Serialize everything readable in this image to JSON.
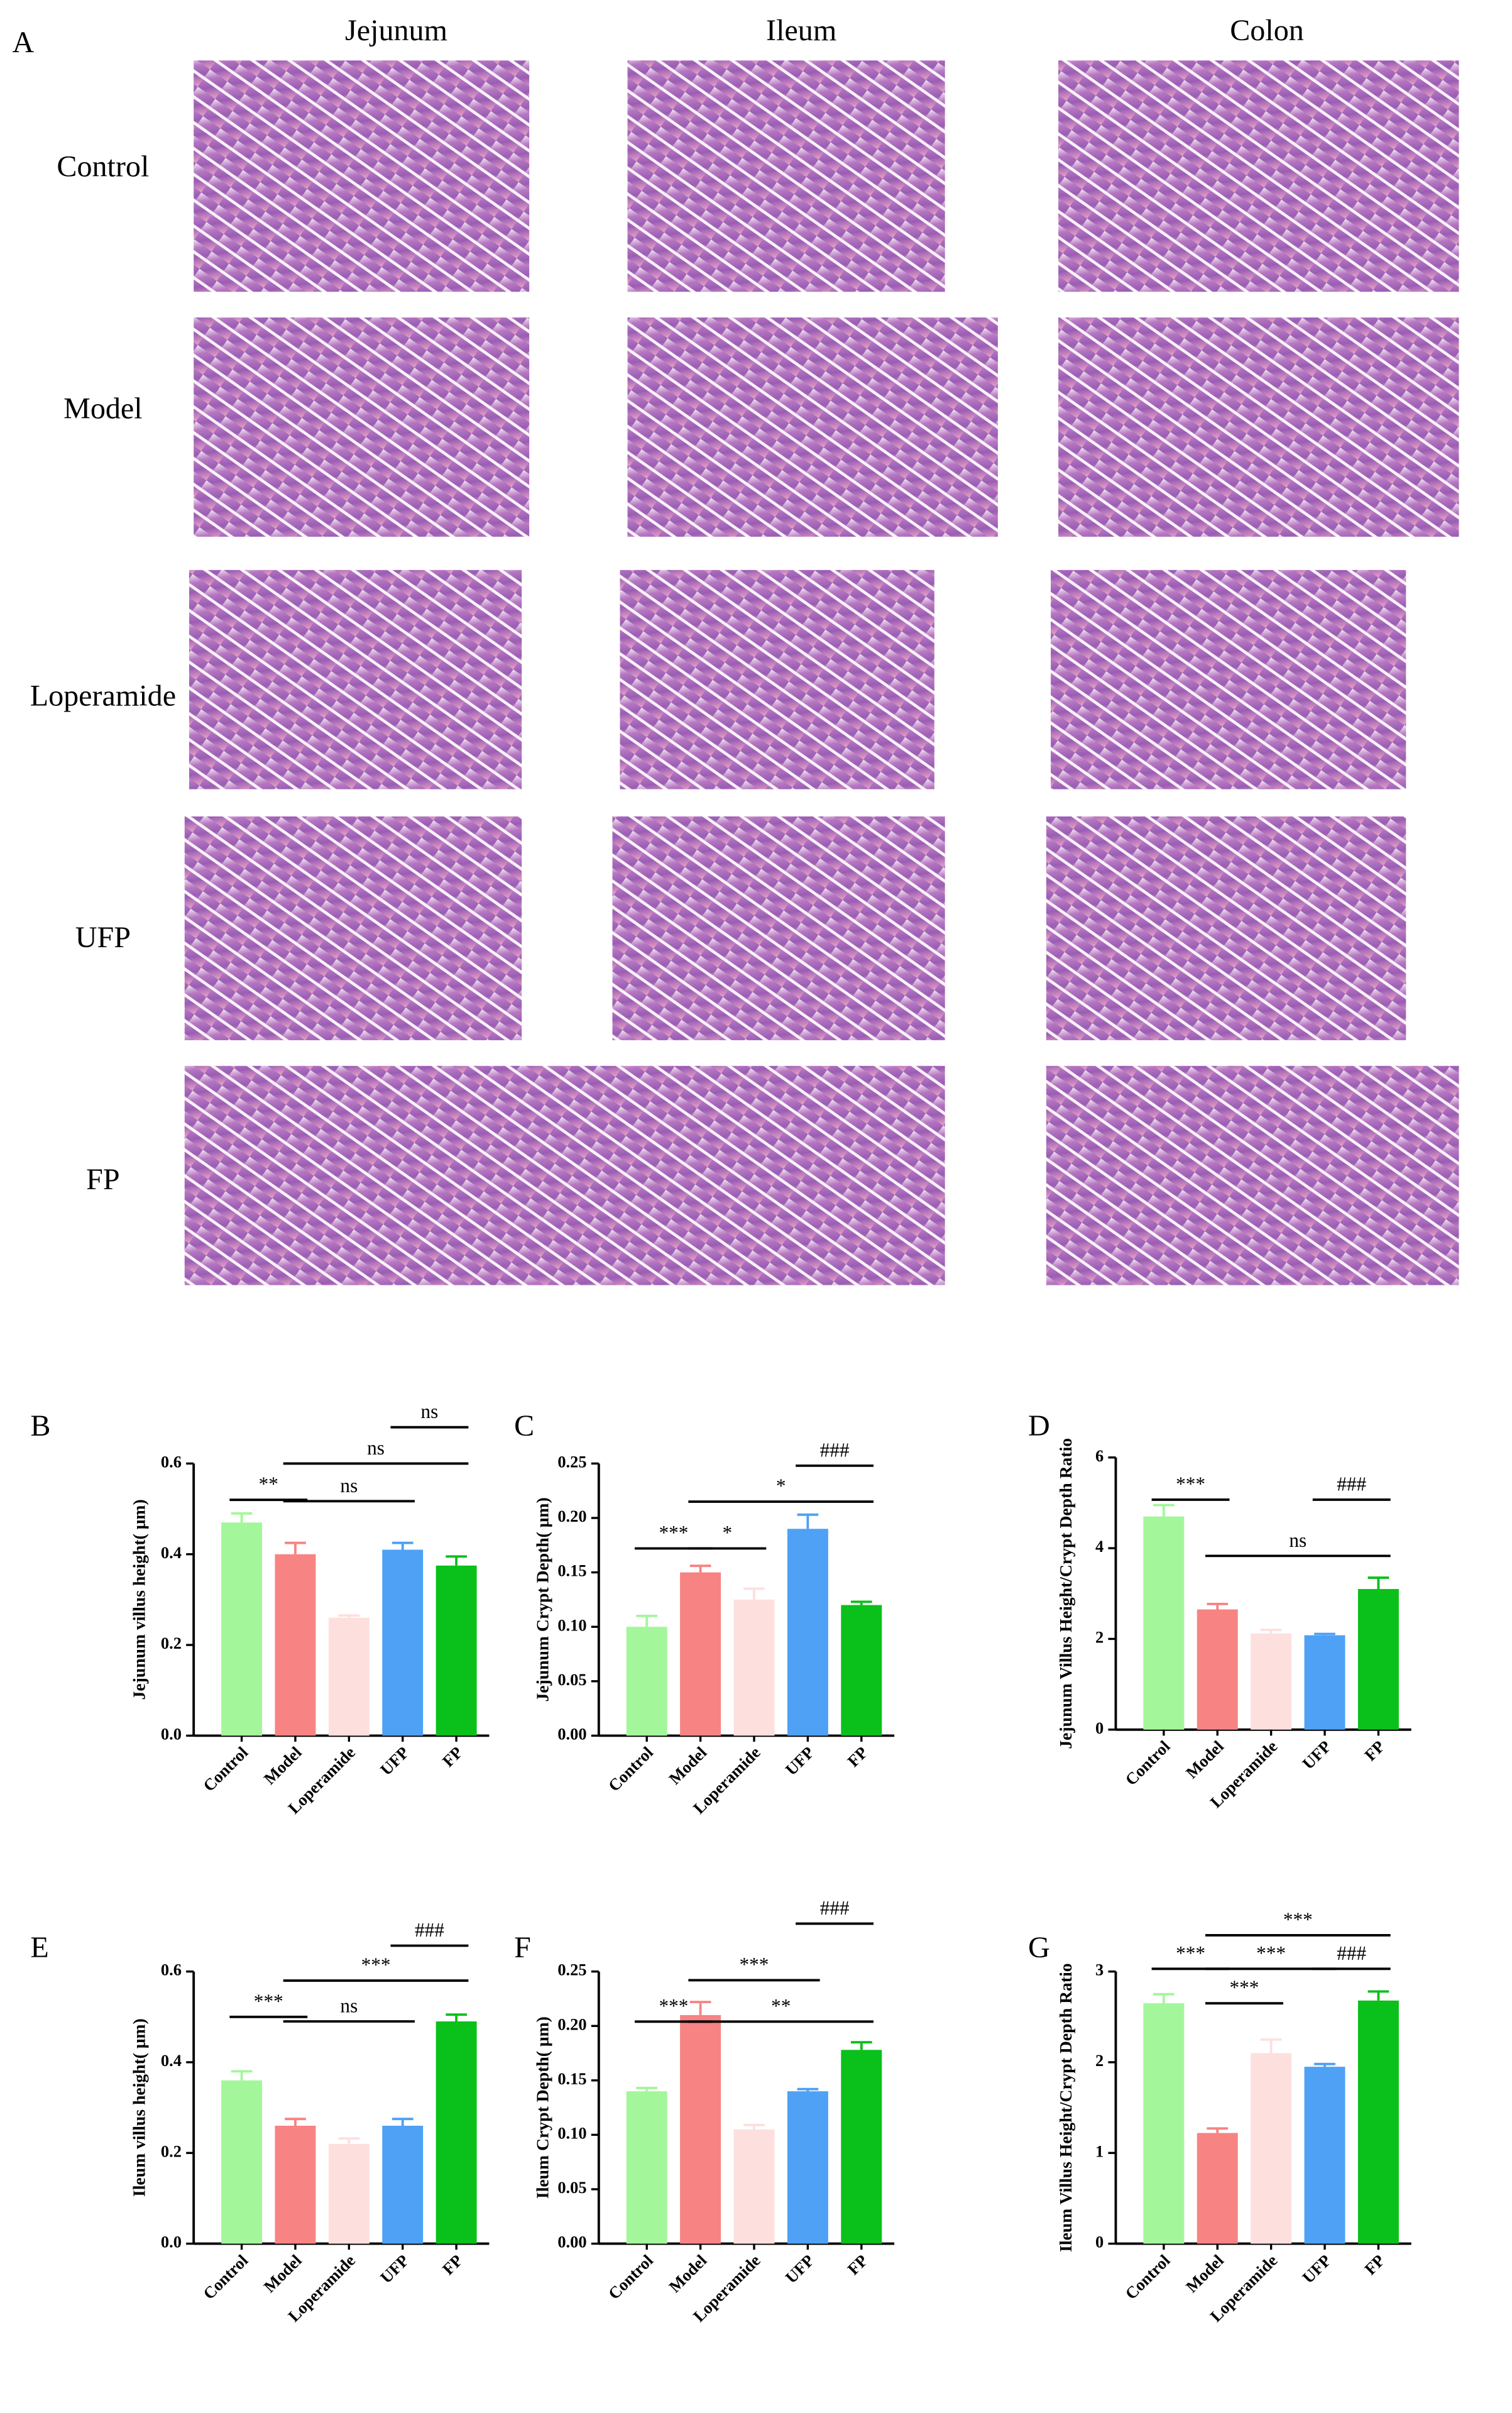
{
  "figure_a": {
    "label": "A",
    "columns": [
      "Jejunum",
      "Ileum",
      "Colon"
    ],
    "rows": [
      "Control",
      "Model",
      "Loperamide",
      "UFP",
      "FP"
    ]
  },
  "chart_data": [
    {
      "type": "bar",
      "panel": "B",
      "ylabel": "Jejunum villus height( μm)",
      "categories": [
        "Control",
        "Model",
        "Loperamide",
        "UFP",
        "FP"
      ],
      "values": [
        0.47,
        0.4,
        0.26,
        0.41,
        0.375
      ],
      "errors": [
        0.02,
        0.025,
        0.005,
        0.015,
        0.02
      ],
      "colors": [
        "#a3f79a",
        "#f78383",
        "#fde0de",
        "#4ea1f5",
        "#0ac01a"
      ],
      "ylim": [
        0,
        0.6
      ],
      "yticks": [
        {
          "value": 0,
          "label": "0.0"
        },
        0.2,
        0.4,
        0.6
      ],
      "annotations": [
        {
          "text": "**",
          "from": "Control",
          "to": "Model",
          "y": 0.52
        },
        {
          "text": "ns",
          "from": "Model",
          "to": "UFP",
          "y": 0.517
        },
        {
          "text": "ns",
          "from": "Model",
          "to": "FP",
          "y": 0.6
        },
        {
          "text": "ns",
          "from": "UFP",
          "to": "FP",
          "y": 0.68
        }
      ]
    },
    {
      "type": "bar",
      "panel": "C",
      "ylabel": "Jejunum Crypt Depth( μm)",
      "categories": [
        "Control",
        "Model",
        "Loperamide",
        "UFP",
        "FP"
      ],
      "values": [
        0.1,
        0.15,
        0.125,
        0.19,
        0.12
      ],
      "errors": [
        0.01,
        0.006,
        0.01,
        0.013,
        0.003
      ],
      "colors": [
        "#a3f79a",
        "#f78383",
        "#fde0de",
        "#4ea1f5",
        "#0ac01a"
      ],
      "ylim": [
        0,
        0.25
      ],
      "yticks": [
        {
          "value": 0,
          "label": "0.00"
        },
        0.05,
        {
          "value": 0.1,
          "label": "0.10"
        },
        0.15,
        {
          "value": 0.2,
          "label": "0.20"
        },
        0.25
      ],
      "annotations": [
        {
          "text": "***",
          "from": "Control",
          "to": "Model",
          "y": 0.172
        },
        {
          "text": "*",
          "from": "Model",
          "to": "Loperamide",
          "y": 0.172
        },
        {
          "text": "*",
          "from": "Model",
          "to": "FP",
          "y": 0.215
        },
        {
          "text": "###",
          "from": "UFP",
          "to": "FP",
          "y": 0.248
        }
      ]
    },
    {
      "type": "bar",
      "panel": "D",
      "ylabel": "Jejunum Villus Height/Crypt Depth Ratio",
      "categories": [
        "Control",
        "Model",
        "Loperamide",
        "UFP",
        "FP"
      ],
      "values": [
        4.7,
        2.65,
        2.12,
        2.08,
        3.1
      ],
      "errors": [
        0.25,
        0.12,
        0.08,
        0.03,
        0.25
      ],
      "colors": [
        "#a3f79a",
        "#f78383",
        "#fde0de",
        "#4ea1f5",
        "#0ac01a"
      ],
      "ylim": [
        0,
        6
      ],
      "yticks": [
        0,
        2,
        4,
        6
      ],
      "annotations": [
        {
          "text": "***",
          "from": "Control",
          "to": "Model",
          "y": 5.07
        },
        {
          "text": "ns",
          "from": "Model",
          "to": "FP",
          "y": 3.83
        },
        {
          "text": "###",
          "from": "UFP",
          "to": "FP",
          "y": 5.07
        }
      ]
    },
    {
      "type": "bar",
      "panel": "E",
      "ylabel": "Ileum villus height( μm)",
      "categories": [
        "Control",
        "Model",
        "Loperamide",
        "UFP",
        "FP"
      ],
      "values": [
        0.36,
        0.26,
        0.22,
        0.26,
        0.49
      ],
      "errors": [
        0.02,
        0.015,
        0.012,
        0.015,
        0.015
      ],
      "colors": [
        "#a3f79a",
        "#f78383",
        "#fde0de",
        "#4ea1f5",
        "#0ac01a"
      ],
      "ylim": [
        0,
        0.6
      ],
      "yticks": [
        {
          "value": 0,
          "label": "0.0"
        },
        0.2,
        0.4,
        0.6
      ],
      "annotations": [
        {
          "text": "***",
          "from": "Control",
          "to": "Model",
          "y": 0.5
        },
        {
          "text": "ns",
          "from": "Model",
          "to": "UFP",
          "y": 0.49
        },
        {
          "text": "***",
          "from": "Model",
          "to": "FP",
          "y": 0.58
        },
        {
          "text": "###",
          "from": "UFP",
          "to": "FP",
          "y": 0.657
        }
      ]
    },
    {
      "type": "bar",
      "panel": "F",
      "ylabel": "Ileum Crypt Depth( μm)",
      "categories": [
        "Control",
        "Model",
        "Loperamide",
        "UFP",
        "FP"
      ],
      "values": [
        0.14,
        0.21,
        0.105,
        0.14,
        0.178
      ],
      "errors": [
        0.003,
        0.012,
        0.004,
        0.002,
        0.007
      ],
      "colors": [
        "#a3f79a",
        "#f78383",
        "#fde0de",
        "#4ea1f5",
        "#0ac01a"
      ],
      "ylim": [
        0,
        0.25
      ],
      "yticks": [
        {
          "value": 0,
          "label": "0.00"
        },
        0.05,
        {
          "value": 0.1,
          "label": "0.10"
        },
        0.15,
        {
          "value": 0.2,
          "label": "0.20"
        },
        0.25
      ],
      "annotations": [
        {
          "text": "***",
          "from": "Control",
          "to": "Model",
          "y": 0.204
        },
        {
          "text": "***",
          "from": "Model",
          "to": "UFP",
          "y": 0.242
        },
        {
          "text": "**",
          "from": "Model",
          "to": "FP",
          "y": 0.204
        },
        {
          "text": "###",
          "from": "UFP",
          "to": "FP",
          "y": 0.294
        }
      ]
    },
    {
      "type": "bar",
      "panel": "G",
      "ylabel": "Ileum Villus Height/Crypt Depth Ratio",
      "categories": [
        "Control",
        "Model",
        "Loperamide",
        "UFP",
        "FP"
      ],
      "values": [
        2.65,
        1.22,
        2.1,
        1.95,
        2.68
      ],
      "errors": [
        0.1,
        0.05,
        0.15,
        0.03,
        0.1
      ],
      "colors": [
        "#a3f79a",
        "#f78383",
        "#fde0de",
        "#4ea1f5",
        "#0ac01a"
      ],
      "ylim": [
        0,
        3
      ],
      "yticks": [
        0,
        1,
        2,
        3
      ],
      "annotations": [
        {
          "text": "***",
          "from": "Control",
          "to": "Model",
          "y": 3.03
        },
        {
          "text": "***",
          "from": "Model",
          "to": "Loperamide",
          "y": 2.65
        },
        {
          "text": "***",
          "from": "Model",
          "to": "UFP",
          "y": 3.03
        },
        {
          "text": "***",
          "from": "Model",
          "to": "FP",
          "y": 3.4
        },
        {
          "text": "###",
          "from": "UFP",
          "to": "FP",
          "y": 3.03
        }
      ]
    }
  ]
}
